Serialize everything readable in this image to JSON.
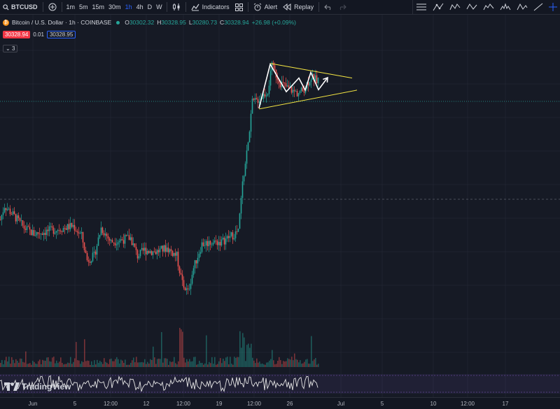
{
  "toolbar": {
    "symbol": "BTCUSD",
    "intervals": [
      "1m",
      "5m",
      "15m",
      "30m",
      "1h",
      "4h",
      "D",
      "W"
    ],
    "active_interval": "1h",
    "indicators_label": "Indicators",
    "alert_label": "Alert",
    "replay_label": "Replay"
  },
  "legend": {
    "title": "Bitcoin / U.S. Dollar · 1h · COINBASE",
    "o_key": "O",
    "o_val": "30302.32",
    "h_key": "H",
    "h_val": "30328.95",
    "l_key": "L",
    "l_val": "30280.73",
    "c_key": "C",
    "c_val": "30328.94",
    "change": "+26.98 (+0.09%)",
    "sell_price": "30328.94",
    "spread": "0.01",
    "buy_price": "30328.95",
    "indicator_count": "3"
  },
  "logo": {
    "text": "TradingView"
  },
  "chart_data": {
    "type": "candlestick",
    "symbol": "BTCUSD",
    "interval": "1h",
    "x_ticks": [
      "Jun",
      "5",
      "12:00",
      "12",
      "12:00",
      "19",
      "12:00",
      "26",
      "Jul",
      "5",
      "10",
      "12:00",
      "17"
    ],
    "price_path": [
      {
        "x": 0,
        "y": 26900
      },
      {
        "x": 6,
        "y": 27250
      },
      {
        "x": 14,
        "y": 27100
      },
      {
        "x": 22,
        "y": 26950
      },
      {
        "x": 34,
        "y": 26700
      },
      {
        "x": 48,
        "y": 26550
      },
      {
        "x": 62,
        "y": 26600
      },
      {
        "x": 76,
        "y": 26650
      },
      {
        "x": 92,
        "y": 26700
      },
      {
        "x": 104,
        "y": 26750
      },
      {
        "x": 116,
        "y": 26500
      },
      {
        "x": 124,
        "y": 25900
      },
      {
        "x": 134,
        "y": 26000
      },
      {
        "x": 144,
        "y": 26700
      },
      {
        "x": 158,
        "y": 26350
      },
      {
        "x": 172,
        "y": 26400
      },
      {
        "x": 186,
        "y": 26450
      },
      {
        "x": 196,
        "y": 26000
      },
      {
        "x": 206,
        "y": 26150
      },
      {
        "x": 222,
        "y": 26100
      },
      {
        "x": 238,
        "y": 26200
      },
      {
        "x": 252,
        "y": 26000
      },
      {
        "x": 260,
        "y": 25300
      },
      {
        "x": 268,
        "y": 25100
      },
      {
        "x": 276,
        "y": 25700
      },
      {
        "x": 288,
        "y": 26300
      },
      {
        "x": 302,
        "y": 26350
      },
      {
        "x": 316,
        "y": 26350
      },
      {
        "x": 330,
        "y": 26500
      },
      {
        "x": 340,
        "y": 26600
      },
      {
        "x": 346,
        "y": 27800
      },
      {
        "x": 354,
        "y": 28800
      },
      {
        "x": 360,
        "y": 29800
      },
      {
        "x": 370,
        "y": 29900
      },
      {
        "x": 382,
        "y": 30100
      },
      {
        "x": 388,
        "y": 30700
      },
      {
        "x": 400,
        "y": 30300
      },
      {
        "x": 412,
        "y": 30150
      },
      {
        "x": 424,
        "y": 30050
      },
      {
        "x": 432,
        "y": 30100
      },
      {
        "x": 444,
        "y": 30450
      },
      {
        "x": 455,
        "y": 30330
      }
    ],
    "volume_profile": "bars along the bottom, spiking near Jun 15 and Jun 20-21",
    "drawings": [
      {
        "type": "trendline",
        "color": "#f5e642",
        "points": [
          {
            "x": 386,
            "y": 30780
          },
          {
            "x": 503,
            "y": 30420
          }
        ]
      },
      {
        "type": "trendline",
        "color": "#f5e642",
        "points": [
          {
            "x": 370,
            "y": 29650
          },
          {
            "x": 510,
            "y": 30120
          }
        ]
      },
      {
        "type": "path",
        "color": "#ffffff",
        "points": [
          {
            "x": 370,
            "y": 29670
          },
          {
            "x": 386,
            "y": 30760
          },
          {
            "x": 409,
            "y": 30080
          },
          {
            "x": 427,
            "y": 30420
          },
          {
            "x": 436,
            "y": 30120
          },
          {
            "x": 444,
            "y": 30560
          },
          {
            "x": 455,
            "y": 30130
          },
          {
            "x": 468,
            "y": 30430
          }
        ]
      }
    ],
    "oscillator": "white line in lower pane, range band shaded purple",
    "grid": true
  }
}
